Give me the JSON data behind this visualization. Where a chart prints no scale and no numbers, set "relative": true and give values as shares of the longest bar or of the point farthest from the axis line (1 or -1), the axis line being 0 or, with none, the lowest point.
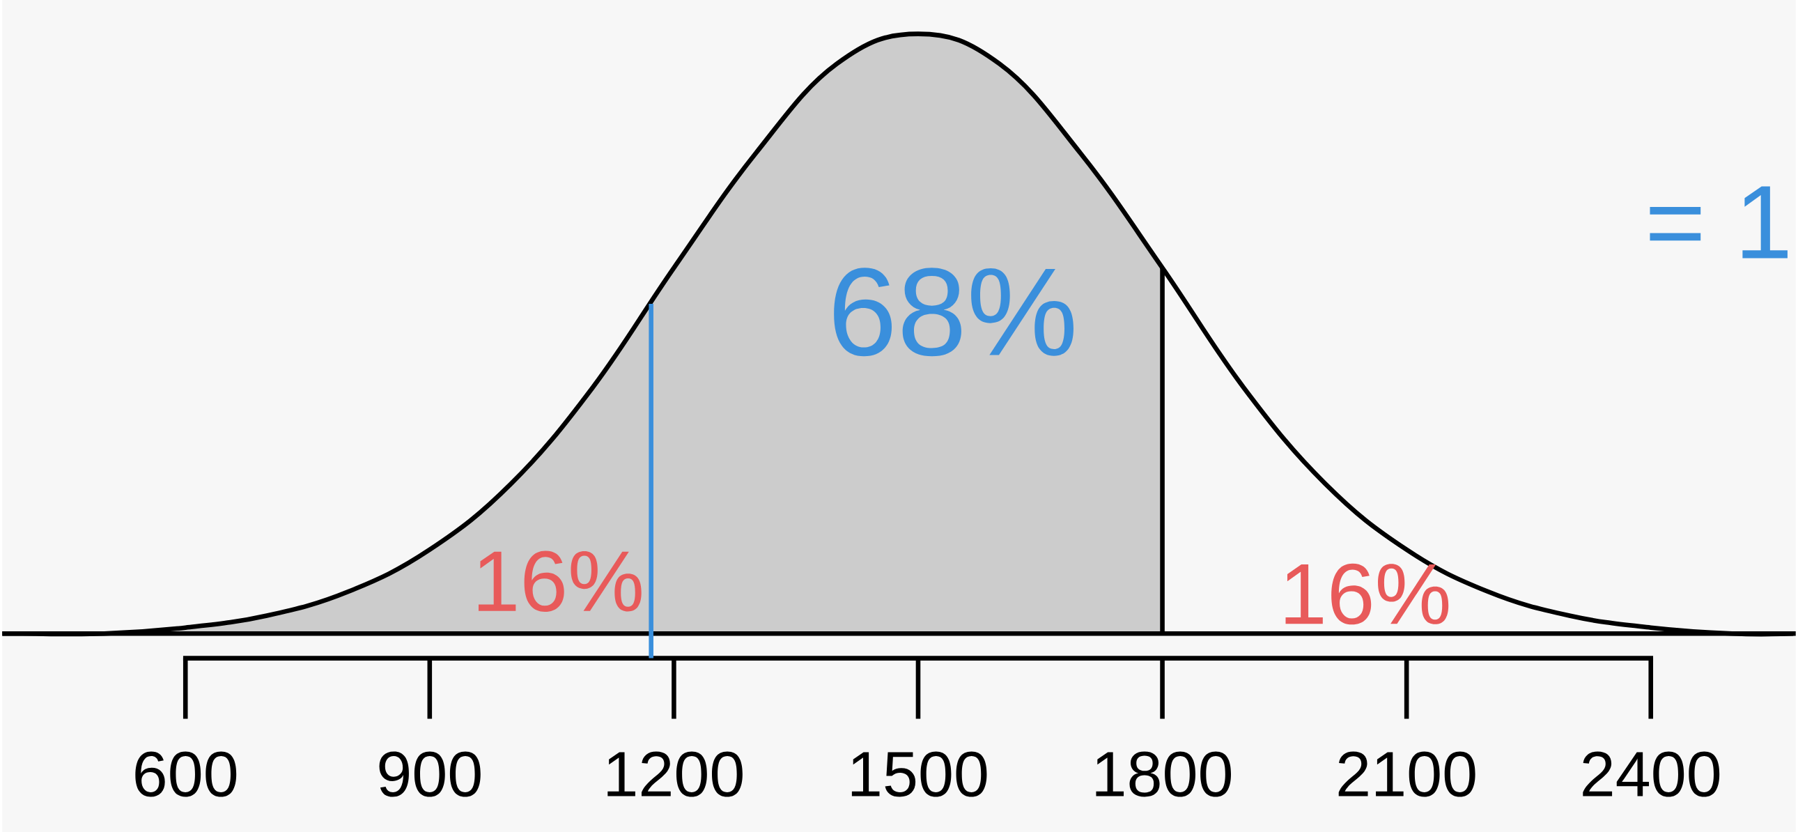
{
  "chart_data": {
    "type": "line",
    "relative": true,
    "xlim": [
      375,
      2578
    ],
    "xticks": [
      600,
      900,
      1200,
      1500,
      1800,
      2100,
      2400
    ],
    "series": [
      {
        "type": "area",
        "color": "#cccccc",
        "x": [
          375,
          400,
          500,
          600,
          700,
          800,
          900,
          1000,
          1100,
          1200,
          1300,
          1400,
          1500,
          1600,
          1700,
          1800
        ],
        "values": [
          0,
          0.0,
          0.0,
          0.01,
          0.03,
          0.07,
          0.14,
          0.25,
          0.41,
          0.61,
          0.8,
          0.95,
          1,
          0.95,
          0.8,
          0.61
        ]
      },
      {
        "color": "#000000",
        "x": [
          375,
          400,
          500,
          600,
          700,
          800,
          900,
          1000,
          1100,
          1200,
          1300,
          1400,
          1500,
          1600,
          1700,
          1800,
          1900,
          2000,
          2100,
          2200,
          2300,
          2400,
          2500,
          2575
        ],
        "values": [
          0,
          0.0,
          0.0,
          0.01,
          0.03,
          0.07,
          0.14,
          0.25,
          0.41,
          0.61,
          0.8,
          0.95,
          1,
          0.95,
          0.8,
          0.61,
          0.41,
          0.25,
          0.14,
          0.07,
          0.03,
          0.01,
          0.0,
          0
        ]
      }
    ],
    "ref_lines": [
      {
        "axis": "x",
        "value": 1172,
        "color": "#3a8fdc"
      }
    ],
    "annotations": [
      "68%",
      "16%",
      "16%",
      "= 1"
    ]
  }
}
